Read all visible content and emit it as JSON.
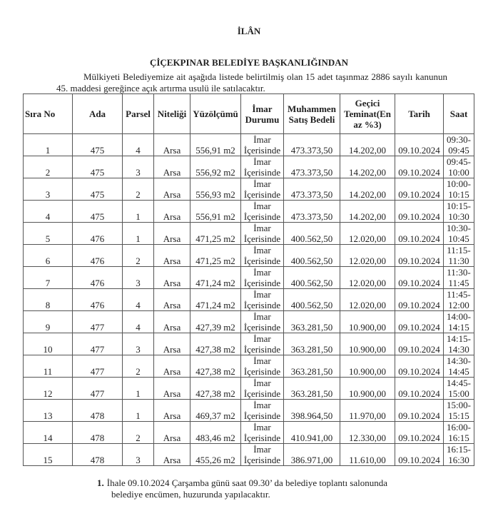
{
  "title": "İLÂN",
  "subtitle": "ÇİÇEKPINAR BELEDİYE BAŞKANLIĞINDAN",
  "intro": "Mülkiyeti Belediyemize ait aşağıda listede belirtilmiş olan 15 adet taşınmaz 2886 sayılı kanunun 45. maddesi gereğince açık artırma usulü ile satılacaktır.",
  "table": {
    "headers": [
      "Sıra No",
      "Ada",
      "Parsel",
      "Niteliği",
      "Yüzölçümü",
      "İmar Durumu",
      "Muhammen Satış Bedeli",
      "Geçici Teminat(En az %3)",
      "Tarih",
      "Saat"
    ],
    "rows": [
      {
        "no": "1",
        "ada": "475",
        "parsel": "4",
        "nitelik": "Arsa",
        "alan": "556,91 m2",
        "imar1": "İmar",
        "imar2": "İçerisinde",
        "bedel": "473.373,50",
        "teminat": "14.202,00",
        "tarih": "09.10.2024",
        "saat1": "09:30-",
        "saat2": "09:45"
      },
      {
        "no": "2",
        "ada": "475",
        "parsel": "3",
        "nitelik": "Arsa",
        "alan": "556,92 m2",
        "imar1": "İmar",
        "imar2": "İçerisinde",
        "bedel": "473.373,50",
        "teminat": "14.202,00",
        "tarih": "09.10.2024",
        "saat1": "09:45-",
        "saat2": "10:00"
      },
      {
        "no": "3",
        "ada": "475",
        "parsel": "2",
        "nitelik": "Arsa",
        "alan": "556,93 m2",
        "imar1": "İmar",
        "imar2": "İçerisinde",
        "bedel": "473.373,50",
        "teminat": "14.202,00",
        "tarih": "09.10.2024",
        "saat1": "10:00-",
        "saat2": "10:15"
      },
      {
        "no": "4",
        "ada": "475",
        "parsel": "1",
        "nitelik": "Arsa",
        "alan": "556,91 m2",
        "imar1": "İmar",
        "imar2": "İçerisinde",
        "bedel": "473.373,50",
        "teminat": "14.202,00",
        "tarih": "09.10.2024",
        "saat1": "10:15-",
        "saat2": "10:30"
      },
      {
        "no": "5",
        "ada": "476",
        "parsel": "1",
        "nitelik": "Arsa",
        "alan": "471,25 m2",
        "imar1": "İmar",
        "imar2": "İçerisinde",
        "bedel": "400.562,50",
        "teminat": "12.020,00",
        "tarih": "09.10.2024",
        "saat1": "10:30-",
        "saat2": "10:45"
      },
      {
        "no": "6",
        "ada": "476",
        "parsel": "2",
        "nitelik": "Arsa",
        "alan": "471,25 m2",
        "imar1": "İmar",
        "imar2": "İçerisinde",
        "bedel": "400.562,50",
        "teminat": "12.020,00",
        "tarih": "09.10.2024",
        "saat1": "11:15-",
        "saat2": "11:30"
      },
      {
        "no": "7",
        "ada": "476",
        "parsel": "3",
        "nitelik": "Arsa",
        "alan": "471,24 m2",
        "imar1": "İmar",
        "imar2": "İçerisinde",
        "bedel": "400.562,50",
        "teminat": "12.020,00",
        "tarih": "09.10.2024",
        "saat1": "11:30-",
        "saat2": "11:45"
      },
      {
        "no": "8",
        "ada": "476",
        "parsel": "4",
        "nitelik": "Arsa",
        "alan": "471,24 m2",
        "imar1": "İmar",
        "imar2": "İçerisinde",
        "bedel": "400.562,50",
        "teminat": "12.020,00",
        "tarih": "09.10.2024",
        "saat1": "11:45-",
        "saat2": "12:00"
      },
      {
        "no": "9",
        "ada": "477",
        "parsel": "4",
        "nitelik": "Arsa",
        "alan": "427,39 m2",
        "imar1": "İmar",
        "imar2": "İçerisinde",
        "bedel": "363.281,50",
        "teminat": "10.900,00",
        "tarih": "09.10.2024",
        "saat1": "14:00-",
        "saat2": "14:15"
      },
      {
        "no": "10",
        "ada": "477",
        "parsel": "3",
        "nitelik": "Arsa",
        "alan": "427,38 m2",
        "imar1": "İmar",
        "imar2": "İçerisinde",
        "bedel": "363.281,50",
        "teminat": "10.900,00",
        "tarih": "09.10.2024",
        "saat1": "14:15-",
        "saat2": "14:30"
      },
      {
        "no": "11",
        "ada": "477",
        "parsel": "2",
        "nitelik": "Arsa",
        "alan": "427,38 m2",
        "imar1": "İmar",
        "imar2": "İçerisinde",
        "bedel": "363.281,50",
        "teminat": "10.900,00",
        "tarih": "09.10.2024",
        "saat1": "14:30-",
        "saat2": "14:45"
      },
      {
        "no": "12",
        "ada": "477",
        "parsel": "1",
        "nitelik": "Arsa",
        "alan": "427,38 m2",
        "imar1": "İmar",
        "imar2": "İçerisinde",
        "bedel": "363.281,50",
        "teminat": "10.900,00",
        "tarih": "09.10.2024",
        "saat1": "14:45-",
        "saat2": "15:00"
      },
      {
        "no": "13",
        "ada": "478",
        "parsel": "1",
        "nitelik": "Arsa",
        "alan": "469,37 m2",
        "imar1": "İmar",
        "imar2": "İçerisinde",
        "bedel": "398.964,50",
        "teminat": "11.970,00",
        "tarih": "09.10.2024",
        "saat1": "15:00-",
        "saat2": "15:15"
      },
      {
        "no": "14",
        "ada": "478",
        "parsel": "2",
        "nitelik": "Arsa",
        "alan": "483,46 m2",
        "imar1": "İmar",
        "imar2": "İçerisinde",
        "bedel": "410.941,00",
        "teminat": "12.330,00",
        "tarih": "09.10.2024",
        "saat1": "16:00-",
        "saat2": "16:15"
      },
      {
        "no": "15",
        "ada": "478",
        "parsel": "3",
        "nitelik": "Arsa",
        "alan": "455,26 m2",
        "imar1": "İmar",
        "imar2": "İçerisinde",
        "bedel": "386.971,00",
        "teminat": "11.610,00",
        "tarih": "09.10.2024",
        "saat1": "16:15-",
        "saat2": "16:30"
      }
    ]
  },
  "note": {
    "number": "1.",
    "line1": "İhale 09.10.2024 Çarşamba günü saat 09.30’ da belediye toplantı salonunda",
    "line2": "belediye encümen, huzurunda yapılacaktır."
  }
}
